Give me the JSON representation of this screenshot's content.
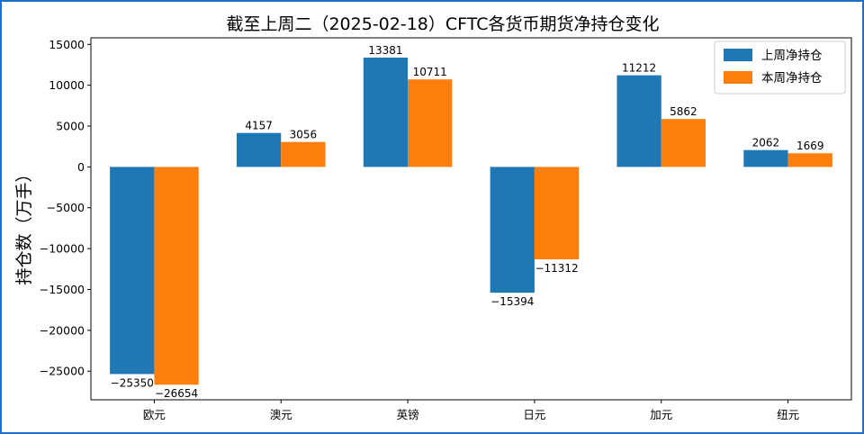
{
  "chart_data": {
    "type": "bar",
    "title": "截至上周二（2025-02-18）CFTC各货币期货净持仓变化",
    "xlabel": "",
    "ylabel": "持仓数（万手）",
    "categories": [
      "欧元",
      "澳元",
      "英镑",
      "日元",
      "加元",
      "纽元"
    ],
    "series": [
      {
        "name": "上周净持仓",
        "color": "#1f77b4",
        "values": [
          -25350,
          4157,
          13381,
          -15394,
          11212,
          2062
        ]
      },
      {
        "name": "本周净持仓",
        "color": "#ff7f0e",
        "values": [
          -26654,
          3056,
          10711,
          -11312,
          5862,
          1669
        ]
      }
    ],
    "ylim": [
      -28500,
      15800
    ],
    "yticks": [
      15000,
      10000,
      5000,
      0,
      -5000,
      -10000,
      -15000,
      -20000,
      -25000
    ],
    "ytick_labels": [
      "15000",
      "10000",
      "5000",
      "0",
      "−5000",
      "−10000",
      "−15000",
      "−20000",
      "−25000"
    ],
    "grid": false,
    "legend": "top-right"
  }
}
